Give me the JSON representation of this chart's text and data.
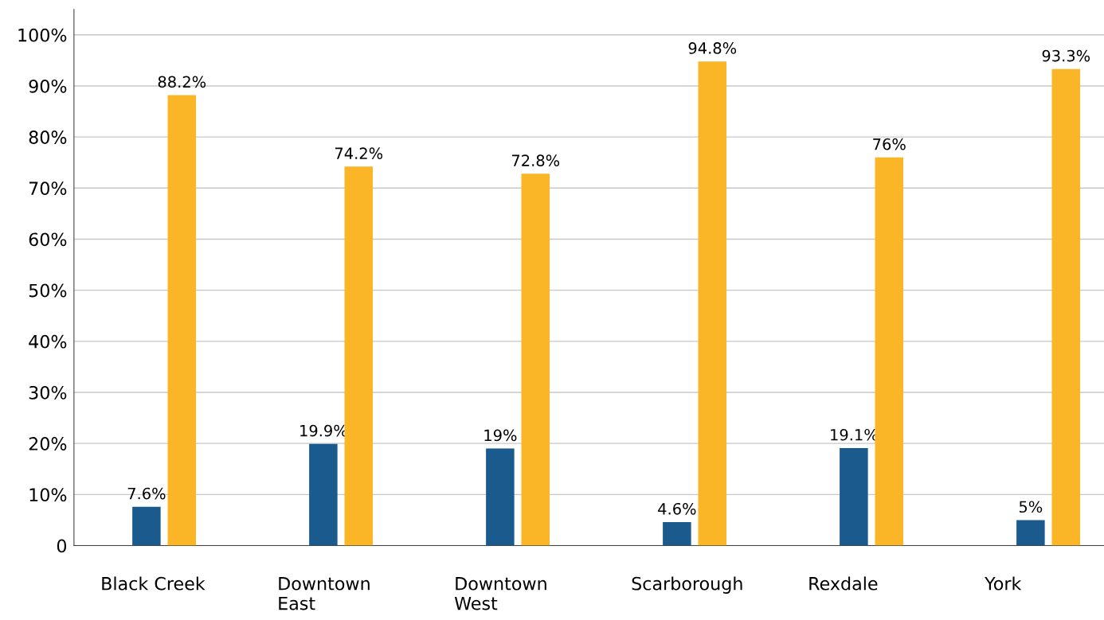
{
  "chart_data": {
    "type": "bar",
    "categories": [
      "Black Creek",
      "Downtown\nEast",
      "Downtown\nWest",
      "Scarborough",
      "Rexdale",
      "York"
    ],
    "series": [
      {
        "color": "#1b5a8c",
        "values": [
          7.6,
          19.9,
          19,
          4.6,
          19.1,
          5
        ]
      },
      {
        "color": "#fbb627",
        "values": [
          88.2,
          74.2,
          72.8,
          94.8,
          76,
          93.3
        ]
      }
    ],
    "ylim": [
      0,
      105
    ],
    "yticks": [
      {
        "value": 0,
        "label": "0"
      },
      {
        "value": 10,
        "label": "10%"
      },
      {
        "value": 20,
        "label": "20%"
      },
      {
        "value": 30,
        "label": "30%"
      },
      {
        "value": 40,
        "label": "40%"
      },
      {
        "value": 50,
        "label": "50%"
      },
      {
        "value": 60,
        "label": "60%"
      },
      {
        "value": 70,
        "label": "70%"
      },
      {
        "value": 80,
        "label": "80%"
      },
      {
        "value": 90,
        "label": "90%"
      },
      {
        "value": 100,
        "label": "100%"
      }
    ],
    "value_labels": [
      [
        "7.6%",
        "19.9%",
        "19%",
        "4.6%",
        "19.1%",
        "5%"
      ],
      [
        "88.2%",
        "74.2%",
        "72.8%",
        "94.8%",
        "76%",
        "93.3%"
      ]
    ],
    "grid": "y"
  }
}
